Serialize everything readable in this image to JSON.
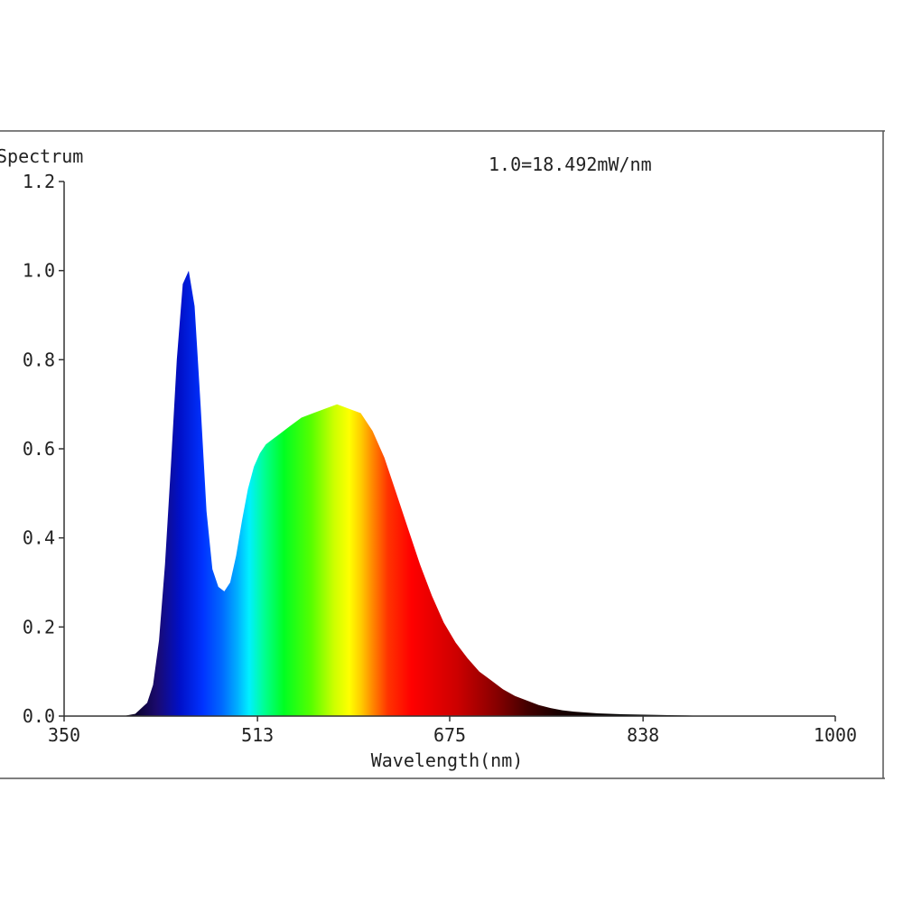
{
  "chart_data": {
    "type": "area",
    "ylabel": "Spectrum",
    "xlabel": "Wavelength(nm)",
    "annotation": "1.0=18.492mW/nm",
    "xlim": [
      350,
      1000
    ],
    "ylim": [
      0,
      1.2
    ],
    "x_ticks": [
      350,
      513,
      675,
      838,
      1000
    ],
    "x_tick_labels": [
      "350",
      "513",
      "675",
      "838",
      "1000"
    ],
    "y_ticks": [
      0,
      0.2,
      0.4,
      0.6,
      0.8,
      1.0,
      1.2
    ],
    "y_tick_labels": [
      "0.0",
      "0.2",
      "0.4",
      "0.6",
      "0.8",
      "1.0",
      "1.2"
    ],
    "grid": false,
    "x": [
      350,
      380,
      400,
      410,
      420,
      425,
      430,
      435,
      440,
      445,
      450,
      455,
      460,
      465,
      470,
      475,
      480,
      485,
      490,
      495,
      500,
      505,
      510,
      515,
      520,
      525,
      530,
      540,
      550,
      560,
      570,
      580,
      590,
      600,
      610,
      620,
      630,
      640,
      650,
      660,
      670,
      680,
      690,
      700,
      710,
      720,
      730,
      740,
      750,
      760,
      770,
      780,
      800,
      820,
      840,
      860,
      880,
      900,
      950,
      1000
    ],
    "values": [
      0.0,
      0.0,
      0.0,
      0.005,
      0.03,
      0.07,
      0.17,
      0.34,
      0.56,
      0.8,
      0.97,
      1.0,
      0.92,
      0.7,
      0.46,
      0.33,
      0.29,
      0.28,
      0.3,
      0.36,
      0.44,
      0.51,
      0.56,
      0.59,
      0.61,
      0.62,
      0.63,
      0.65,
      0.67,
      0.68,
      0.69,
      0.7,
      0.69,
      0.68,
      0.64,
      0.58,
      0.5,
      0.42,
      0.34,
      0.27,
      0.21,
      0.165,
      0.13,
      0.1,
      0.08,
      0.06,
      0.045,
      0.035,
      0.025,
      0.018,
      0.013,
      0.01,
      0.006,
      0.004,
      0.003,
      0.002,
      0.001,
      0.0,
      0.0,
      0.0
    ]
  }
}
